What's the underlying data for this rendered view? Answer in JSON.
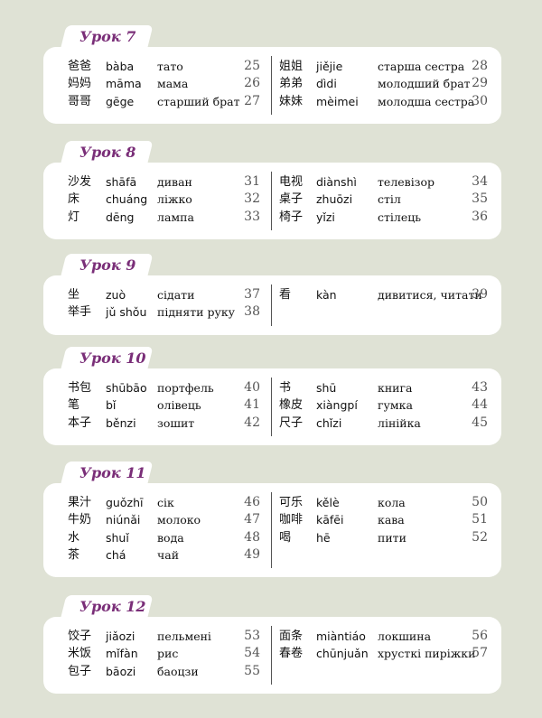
{
  "lessons": [
    {
      "title": "Урок 7",
      "left": [
        {
          "hanzi": "爸爸",
          "pinyin": "bàba",
          "translation": "тато",
          "number": 25
        },
        {
          "hanzi": "妈妈",
          "pinyin": "māma",
          "translation": "мама",
          "number": 26
        },
        {
          "hanzi": "哥哥",
          "pinyin": "gēge",
          "translation": "старший брат",
          "number": 27
        }
      ],
      "right": [
        {
          "hanzi": "姐姐",
          "pinyin": "jiějie",
          "translation": "старша сестра",
          "number": 28
        },
        {
          "hanzi": "弟弟",
          "pinyin": "dìdi",
          "translation": "молодший брат",
          "number": 29
        },
        {
          "hanzi": "妹妹",
          "pinyin": "mèimei",
          "translation": "молодша сестра",
          "number": 30
        }
      ]
    },
    {
      "title": "Урок 8",
      "left": [
        {
          "hanzi": "沙发",
          "pinyin": "shāfā",
          "translation": "диван",
          "number": 31
        },
        {
          "hanzi": "床",
          "pinyin": "chuáng",
          "translation": "ліжко",
          "number": 32
        },
        {
          "hanzi": "灯",
          "pinyin": "dēng",
          "translation": "лампа",
          "number": 33
        }
      ],
      "right": [
        {
          "hanzi": "电视",
          "pinyin": "diànshì",
          "translation": "телевізор",
          "number": 34
        },
        {
          "hanzi": "桌子",
          "pinyin": "zhuōzi",
          "translation": "стіл",
          "number": 35
        },
        {
          "hanzi": "椅子",
          "pinyin": "yǐzi",
          "translation": "стілець",
          "number": 36
        }
      ]
    },
    {
      "title": "Урок 9",
      "left": [
        {
          "hanzi": "坐",
          "pinyin": "zuò",
          "translation": "сідати",
          "number": 37
        },
        {
          "hanzi": "举手",
          "pinyin": "jǔ shǒu",
          "translation": "підняти руку",
          "number": 38
        }
      ],
      "right": [
        {
          "hanzi": "看",
          "pinyin": "kàn",
          "translation": "дивитися, читати",
          "number": 39
        }
      ]
    },
    {
      "title": "Урок 10",
      "left": [
        {
          "hanzi": "书包",
          "pinyin": "shūbāo",
          "translation": "портфель",
          "number": 40
        },
        {
          "hanzi": "笔",
          "pinyin": "bǐ",
          "translation": "олівець",
          "number": 41
        },
        {
          "hanzi": "本子",
          "pinyin": "běnzi",
          "translation": "зошит",
          "number": 42
        }
      ],
      "right": [
        {
          "hanzi": "书",
          "pinyin": "shū",
          "translation": "книга",
          "number": 43
        },
        {
          "hanzi": "橡皮",
          "pinyin": "xiàngpí",
          "translation": "гумка",
          "number": 44
        },
        {
          "hanzi": "尺子",
          "pinyin": "chǐzi",
          "translation": "лінійка",
          "number": 45
        }
      ]
    },
    {
      "title": "Урок 11",
      "left": [
        {
          "hanzi": "果汁",
          "pinyin": "guǒzhī",
          "translation": "сік",
          "number": 46
        },
        {
          "hanzi": "牛奶",
          "pinyin": "niúnǎi",
          "translation": "молоко",
          "number": 47
        },
        {
          "hanzi": "水",
          "pinyin": "shuǐ",
          "translation": "вода",
          "number": 48
        },
        {
          "hanzi": "茶",
          "pinyin": "chá",
          "translation": "чай",
          "number": 49
        }
      ],
      "right": [
        {
          "hanzi": "可乐",
          "pinyin": "kělè",
          "translation": "кола",
          "number": 50
        },
        {
          "hanzi": "咖啡",
          "pinyin": "kāfēi",
          "translation": "кава",
          "number": 51
        },
        {
          "hanzi": "喝",
          "pinyin": "hē",
          "translation": "пити",
          "number": 52
        }
      ]
    },
    {
      "title": "Урок 12",
      "left": [
        {
          "hanzi": "饺子",
          "pinyin": "jiǎozi",
          "translation": "пельмені",
          "number": 53
        },
        {
          "hanzi": "米饭",
          "pinyin": "mǐfàn",
          "translation": "рис",
          "number": 54
        },
        {
          "hanzi": "包子",
          "pinyin": "bāozi",
          "translation": "баоцзи",
          "number": 55
        }
      ],
      "right": [
        {
          "hanzi": "面条",
          "pinyin": "miàntiáo",
          "translation": "локшина",
          "number": 56
        },
        {
          "hanzi": "春卷",
          "pinyin": "chūnjuǎn",
          "translation": "хрусткі пиріжки",
          "number": 57
        }
      ]
    }
  ]
}
